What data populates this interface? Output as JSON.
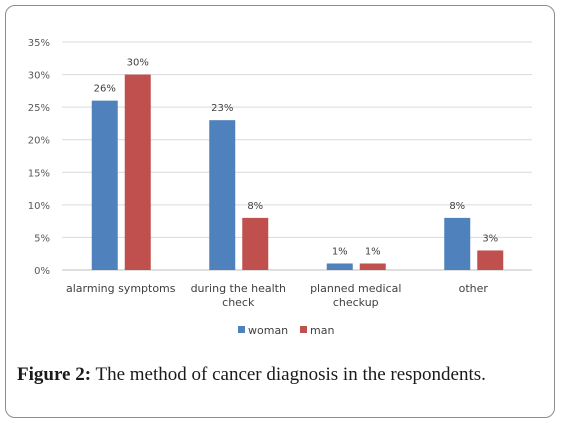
{
  "caption": {
    "label": "Figure 2:",
    "text": " The method of cancer diagnosis in the respondents."
  },
  "chart_data": {
    "type": "bar",
    "categories": [
      "alarming symptoms",
      "during the health check",
      "planned medical checkup",
      "other"
    ],
    "category_lines": [
      [
        "alarming symptoms"
      ],
      [
        "during the health",
        "check"
      ],
      [
        "planned medical",
        "checkup"
      ],
      [
        "other"
      ]
    ],
    "series": [
      {
        "name": "woman",
        "values": [
          26,
          23,
          1,
          8
        ],
        "color": "#4f81bd"
      },
      {
        "name": "man",
        "values": [
          30,
          8,
          1,
          3
        ],
        "color": "#c0504d"
      }
    ],
    "data_labels": [
      [
        "26%",
        "23%",
        "1%",
        "8%"
      ],
      [
        "30%",
        "8%",
        "1%",
        "3%"
      ]
    ],
    "y_ticks": [
      0,
      5,
      10,
      15,
      20,
      25,
      30,
      35
    ],
    "y_tick_labels": [
      "0%",
      "5%",
      "10%",
      "15%",
      "20%",
      "25%",
      "30%",
      "35%"
    ],
    "ylim": [
      0,
      35
    ],
    "grid": true,
    "legend": "bottom",
    "title": "",
    "xlabel": "",
    "ylabel": ""
  }
}
